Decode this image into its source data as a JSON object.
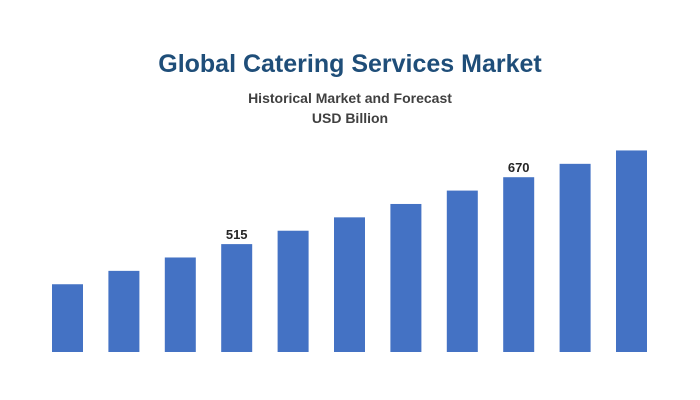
{
  "chart_data": {
    "type": "bar",
    "title": "Global Catering Services Market",
    "subtitle": [
      "Historical Market and Forecast",
      "USD Billion"
    ],
    "categories": [
      "",
      "",
      "",
      "",
      "",
      "",
      "",
      "",
      "",
      "",
      ""
    ],
    "values": [
      422,
      453,
      484,
      515,
      546,
      577,
      608,
      639,
      670,
      701,
      732
    ],
    "data_labels": {
      "3": "515",
      "8": "670"
    },
    "xlabel": "",
    "ylabel": "",
    "ylim": [
      265,
      740
    ],
    "grid": false,
    "legend": "none",
    "bar_color": "#4472c4",
    "title_color": "#1f4e79"
  }
}
